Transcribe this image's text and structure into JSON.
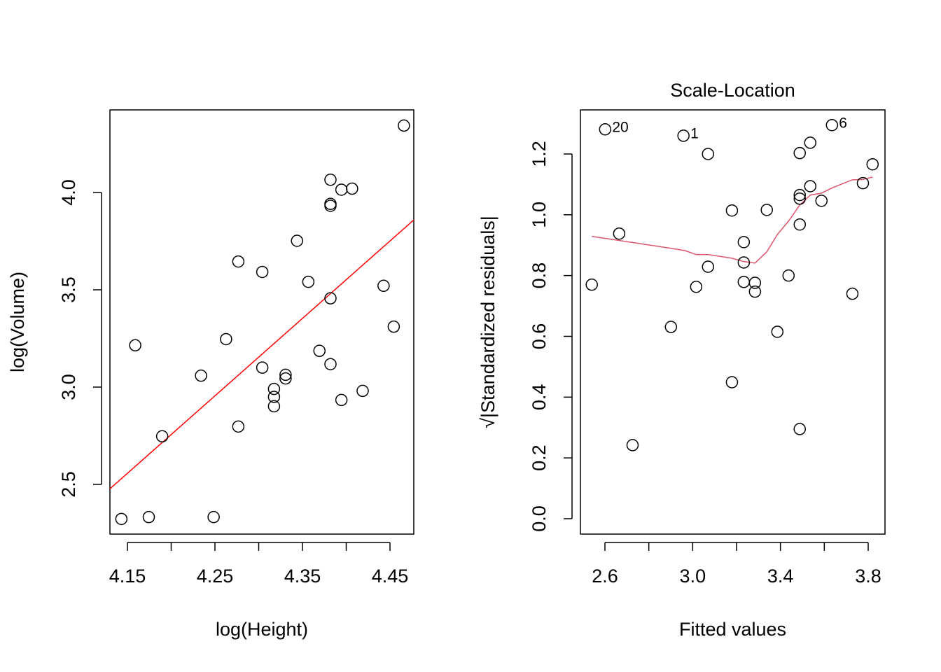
{
  "chart_data": [
    {
      "type": "scatter",
      "xlabel": "log(Height)",
      "ylabel": "log(Volume)",
      "x": [
        4.2485,
        4.1744,
        4.1431,
        4.2767,
        4.3945,
        4.4188,
        4.1897,
        4.3175,
        4.382,
        4.3175,
        4.3694,
        4.3307,
        4.3307,
        4.2341,
        4.3175,
        4.3041,
        4.4427,
        4.4543,
        4.2627,
        4.1589,
        4.3567,
        4.382,
        4.3041,
        4.2767,
        4.3438,
        4.3945,
        4.4067,
        4.382,
        4.382,
        4.382,
        4.4659
      ],
      "y": [
        2.3321,
        2.3321,
        2.3224,
        2.7973,
        2.9339,
        2.9806,
        2.7473,
        2.9014,
        3.1179,
        2.9907,
        3.1864,
        3.0445,
        3.0634,
        3.0587,
        2.9497,
        3.1001,
        3.5205,
        3.3105,
        3.2465,
        3.2149,
        3.541,
        3.4563,
        3.5918,
        3.6454,
        3.7519,
        4.0146,
        4.02,
        4.0656,
        3.9416,
        3.9318,
        4.3438
      ],
      "color": "#000000",
      "fit_line": {
        "intercept": -13.96,
        "slope": 3.98,
        "color": "#ff0000"
      },
      "xlim": [
        4.13,
        4.4772
      ],
      "ylim": [
        2.2446,
        4.4245
      ],
      "xticks": [
        4.15,
        {
          "value": 4.2,
          "label": null
        },
        4.25,
        {
          "value": 4.3,
          "label": null
        },
        4.35,
        {
          "value": 4.4,
          "label": null
        },
        4.45
      ],
      "yticks": [
        2.5,
        {
          "value": 3.0,
          "label": "3.0"
        },
        3.5,
        {
          "value": 4.0,
          "label": "4.0"
        }
      ]
    },
    {
      "type": "scatter",
      "title": "Scale-Location",
      "xlabel": "Fitted values",
      "ylabel": "√|Standardized residuals|",
      "x": [
        2.54,
        2.601,
        2.665,
        2.726,
        2.901,
        2.958,
        3.016,
        3.07,
        3.07,
        3.179,
        3.179,
        3.233,
        3.233,
        3.233,
        3.284,
        3.284,
        3.338,
        3.386,
        3.437,
        3.488,
        3.488,
        3.488,
        3.488,
        3.488,
        3.536,
        3.536,
        3.587,
        3.635,
        3.728,
        3.776,
        3.82
      ],
      "y": [
        0.77,
        1.281,
        0.938,
        0.242,
        0.631,
        1.26,
        0.763,
        1.2,
        0.829,
        1.014,
        0.449,
        0.91,
        0.843,
        0.779,
        0.776,
        0.747,
        1.016,
        0.615,
        0.8,
        1.203,
        1.065,
        1.053,
        0.968,
        0.295,
        1.237,
        1.094,
        1.046,
        1.295,
        0.74,
        1.104,
        1.166
      ],
      "color": "#000000",
      "point_labels": [
        {
          "point": 1,
          "text": "20"
        },
        {
          "point": 5,
          "text": "1"
        },
        {
          "point": 27,
          "text": "6"
        }
      ],
      "smooth": {
        "color": "#df536b",
        "x": [
          2.54,
          2.907,
          2.965,
          3.016,
          3.07,
          3.179,
          3.233,
          3.284,
          3.338,
          3.386,
          3.437,
          3.488,
          3.536,
          3.587,
          3.635,
          3.728,
          3.776,
          3.82
        ],
        "y": [
          0.929,
          0.889,
          0.882,
          0.869,
          0.869,
          0.857,
          0.846,
          0.841,
          0.878,
          0.935,
          0.979,
          1.032,
          1.065,
          1.071,
          1.088,
          1.115,
          1.116,
          1.124
        ]
      },
      "xlim": [
        2.4883,
        3.8766
      ],
      "ylim": [
        -0.0507,
        1.345
      ],
      "xticks": [
        2.6,
        {
          "value": 2.8,
          "label": null
        },
        {
          "value": 3.0,
          "label": "3.0"
        },
        {
          "value": 3.2,
          "label": null
        },
        3.4,
        {
          "value": 3.6,
          "label": null
        },
        3.8
      ],
      "yticks": [
        {
          "value": 0.0,
          "label": "0.0"
        },
        0.2,
        0.4,
        0.6,
        0.8,
        {
          "value": 1.0,
          "label": "1.0"
        },
        1.2
      ]
    }
  ]
}
